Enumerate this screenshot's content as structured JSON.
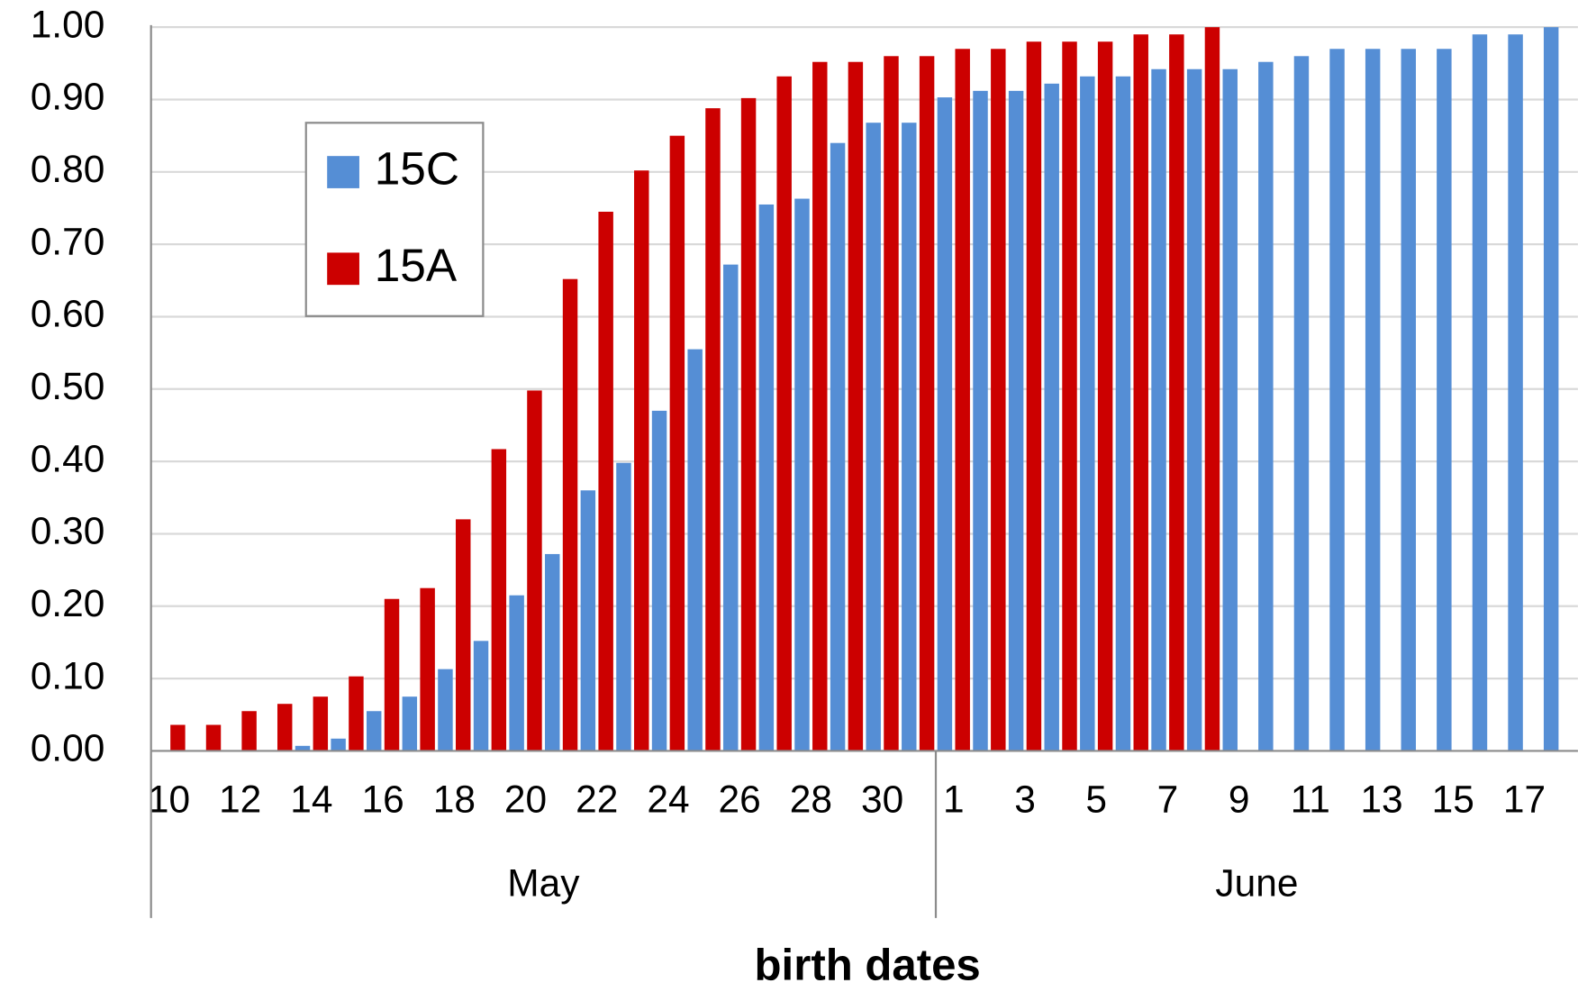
{
  "chart_data": {
    "type": "bar",
    "x_label": "birth dates",
    "categories": [
      "10",
      null,
      "12",
      null,
      "14",
      null,
      "16",
      null,
      "18",
      null,
      "20",
      null,
      "22",
      null,
      "24",
      null,
      "26",
      null,
      "28",
      null,
      "30",
      null,
      "1",
      null,
      "3",
      null,
      "5",
      null,
      "7",
      null,
      "9",
      null,
      "11",
      null,
      "13",
      null,
      "15",
      null,
      "17",
      null
    ],
    "category_groups": [
      {
        "name": "May",
        "count": 22
      },
      {
        "name": "June",
        "count": 18
      }
    ],
    "series": [
      {
        "name": "15C",
        "color": "#558ed5",
        "values": [
          0,
          0,
          0,
          0,
          0.007,
          0.017,
          0.055,
          0.075,
          0.113,
          0.152,
          0.215,
          0.272,
          0.36,
          0.398,
          0.47,
          0.555,
          0.672,
          0.755,
          0.763,
          0.84,
          0.868,
          0.868,
          0.903,
          0.912,
          0.912,
          0.922,
          0.932,
          0.932,
          0.942,
          0.942,
          0.942,
          0.952,
          0.96,
          0.97,
          0.97,
          0.97,
          0.97,
          0.99,
          0.99,
          1.0
        ]
      },
      {
        "name": "15A",
        "color": "#cc0000",
        "values": [
          0.036,
          0.036,
          0.055,
          0.065,
          0.075,
          0.103,
          0.21,
          0.225,
          0.32,
          0.417,
          0.498,
          0.652,
          0.745,
          0.802,
          0.85,
          0.888,
          0.902,
          0.932,
          0.952,
          0.952,
          0.96,
          0.96,
          0.97,
          0.97,
          0.98,
          0.98,
          0.98,
          0.99,
          0.99,
          1.0,
          null,
          null,
          null,
          null,
          null,
          null,
          null,
          null,
          null,
          null
        ]
      }
    ],
    "ylim": [
      0,
      1
    ],
    "yticks": [
      {
        "value": 0,
        "label": "0.00"
      },
      {
        "value": 0.1,
        "label": "0.10"
      },
      {
        "value": 0.2,
        "label": "0.20"
      },
      {
        "value": 0.3,
        "label": "0.30"
      },
      {
        "value": 0.4,
        "label": "0.40"
      },
      {
        "value": 0.5,
        "label": "0.50"
      },
      {
        "value": 0.6,
        "label": "0.60"
      },
      {
        "value": 0.7,
        "label": "0.70"
      },
      {
        "value": 0.8,
        "label": "0.80"
      },
      {
        "value": 0.9,
        "label": "0.90"
      },
      {
        "value": 1,
        "label": "1.00"
      }
    ],
    "grid": true,
    "legend": "upper left"
  }
}
